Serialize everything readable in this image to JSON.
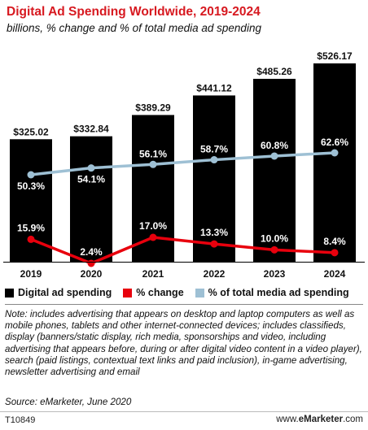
{
  "title": "Digital Ad Spending Worldwide, 2019-2024",
  "subtitle": "billions, % change and % of total media ad spending",
  "chart_data": {
    "type": "bar",
    "categories": [
      "2019",
      "2020",
      "2021",
      "2022",
      "2023",
      "2024"
    ],
    "series": [
      {
        "name": "Digital ad spending",
        "type": "bar",
        "color": "#000000",
        "values": [
          325.02,
          332.84,
          389.29,
          441.12,
          485.26,
          526.17
        ],
        "labels": [
          "$325.02",
          "$332.84",
          "$389.29",
          "$441.12",
          "$485.26",
          "$526.17"
        ]
      },
      {
        "name": "% change",
        "type": "line",
        "color": "#e8000d",
        "values": [
          15.9,
          2.4,
          17.0,
          13.3,
          10.0,
          8.4
        ],
        "labels": [
          "15.9%",
          "2.4%",
          "17.0%",
          "13.3%",
          "10.0%",
          "8.4%"
        ]
      },
      {
        "name": "% of total media ad spending",
        "type": "line",
        "color": "#9ec0d4",
        "values": [
          50.3,
          54.1,
          56.1,
          58.7,
          60.8,
          62.6
        ],
        "labels": [
          "50.3%",
          "54.1%",
          "56.1%",
          "58.7%",
          "60.8%",
          "62.6%"
        ]
      }
    ],
    "ylim_bars": [
      0,
      526.17
    ],
    "legend": "bottom"
  },
  "legend": [
    {
      "label": "Digital ad spending",
      "color": "#000000"
    },
    {
      "label": "% change",
      "color": "#e8000d"
    },
    {
      "label": "% of total media ad spending",
      "color": "#9ec0d4"
    }
  ],
  "note": "Note: includes advertising that appears on desktop and laptop computers as well as mobile phones, tablets and other internet-connected devices; includes classifieds, display (banners/static display, rich media, sponsorships and video, including advertising that appears before, during or after digital video content in a video player), search (paid listings, contextual text links and paid inclusion), in-game advertising, newsletter advertising and email",
  "source": "Source: eMarketer, June 2020",
  "chart_id": "T10849",
  "brand_prefix": "www.",
  "brand_name": "eMarketer",
  "brand_suffix": ".com"
}
